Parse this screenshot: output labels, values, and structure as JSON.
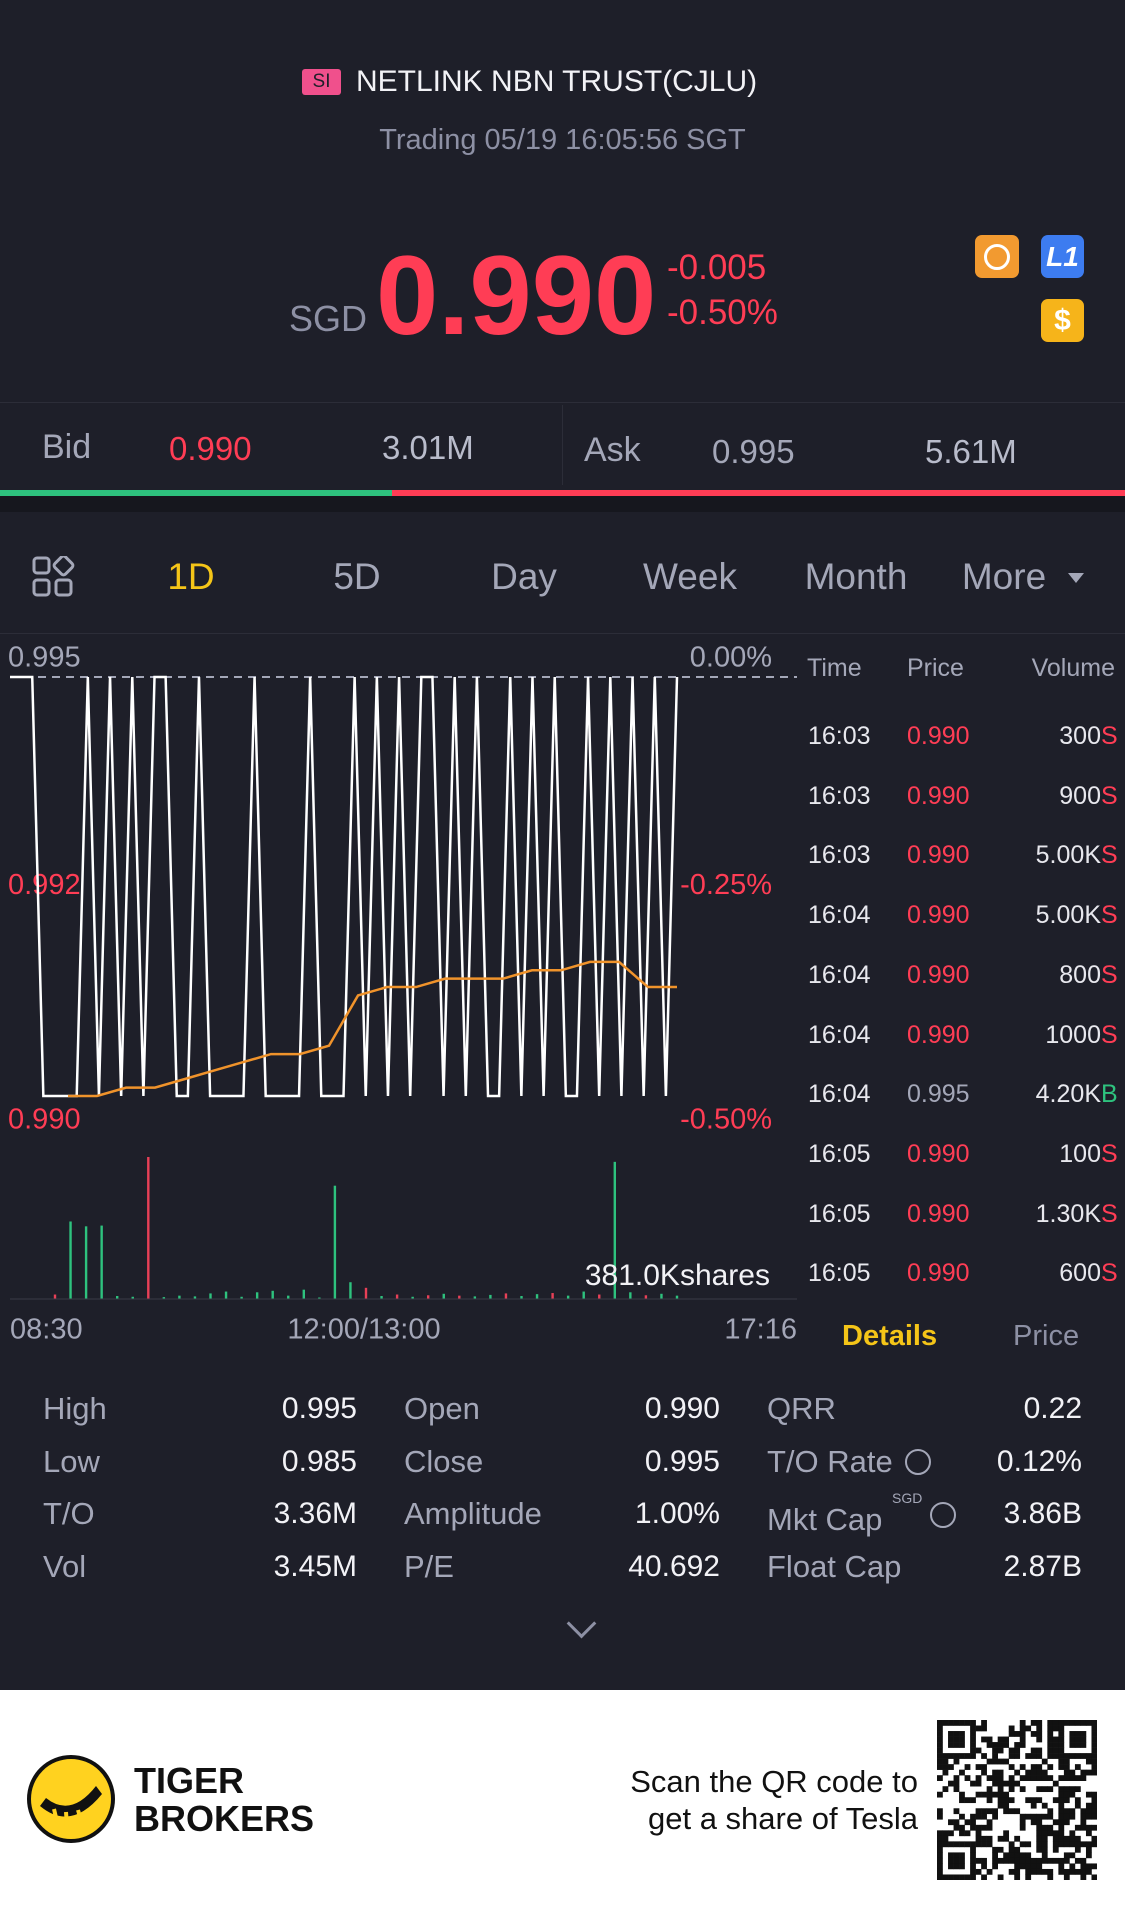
{
  "header": {
    "badge": "SI",
    "title": "NETLINK NBN TRUST(CJLU)",
    "status": "Trading 05/19 16:05:56 SGT"
  },
  "quote": {
    "currency": "SGD",
    "price": "0.990",
    "change": "-0.005",
    "change_pct": "-0.50%",
    "icons": {
      "level": "L1",
      "money": "$"
    }
  },
  "bidask": {
    "bid_label": "Bid",
    "bid_price": "0.990",
    "bid_size": "3.01M",
    "ask_label": "Ask",
    "ask_price": "0.995",
    "ask_size": "5.61M"
  },
  "tabs": [
    "1D",
    "5D",
    "Day",
    "Week",
    "Month",
    "More"
  ],
  "chart_data": {
    "type": "line",
    "ylim": [
      0.99,
      0.995
    ],
    "yticks": [
      {
        "value": 0.99,
        "label": "0.990"
      },
      {
        "value": 0.9925,
        "label": "0.992"
      },
      0.995
    ],
    "y2lim": [
      -0.5,
      0
    ],
    "y2ticks": [
      {
        "value": -0.5,
        "label": "-0.50%"
      },
      {
        "value": -0.25,
        "label": "-0.25%"
      },
      {
        "value": 0,
        "label": "0.00%"
      }
    ],
    "x_labels": [
      "08:30",
      "12:00/13:00",
      "17:16"
    ],
    "series": [
      {
        "color": "#ffffff",
        "values": [
          0.995,
          0.995,
          0.995,
          0.99,
          0.99,
          0.99,
          0.99,
          0.995,
          0.99,
          0.995,
          0.99,
          0.995,
          0.99,
          0.995,
          0.995,
          0.99,
          0.99,
          0.995,
          0.99,
          0.99,
          0.99,
          0.99,
          0.995,
          0.99,
          0.99,
          0.99,
          0.99,
          0.995,
          0.99,
          0.99,
          0.99,
          0.995,
          0.99,
          0.995,
          0.99,
          0.995,
          0.99,
          0.995,
          0.995,
          0.99,
          0.995,
          0.99,
          0.995,
          0.99,
          0.99,
          0.995,
          0.99,
          0.995,
          0.99,
          0.995,
          0.99,
          0.99,
          0.995,
          0.99,
          0.995,
          0.99,
          0.995,
          0.99,
          0.995,
          0.99,
          0.995
        ]
      },
      {
        "color": "#f0932b",
        "values": [
          null,
          null,
          0.99,
          0.99,
          0.9901,
          0.9901,
          0.9902,
          0.9903,
          0.9904,
          0.9905,
          0.9905,
          0.9906,
          0.9912,
          0.9913,
          0.9913,
          0.9914,
          0.9914,
          0.9914,
          0.9915,
          0.9915,
          0.9916,
          0.9916,
          0.9913,
          0.9913
        ]
      }
    ],
    "volume": {
      "max": {
        "value": 381000,
        "label": "381.0Kshares"
      },
      "values": [
        12000,
        208000,
        195000,
        197000,
        8000,
        6000,
        381000,
        5000,
        9000,
        7000,
        15000,
        20000,
        6000,
        18000,
        22000,
        9000,
        25000,
        4000,
        304000,
        45000,
        30000,
        8000,
        12000,
        6000,
        10000,
        14000,
        9000,
        7000,
        11000,
        15000,
        8000,
        13000,
        16000,
        9000,
        20000,
        12000,
        368000,
        18000,
        10000,
        14000,
        9000
      ],
      "colors": [
        "#e84057",
        "#2ec27e",
        "#2ec27e",
        "#2ec27e",
        "#2ec27e",
        "#2ec27e",
        "#e84057",
        "#2ec27e",
        "#2ec27e",
        "#2ec27e",
        "#2ec27e",
        "#2ec27e",
        "#2ec27e",
        "#2ec27e",
        "#2ec27e",
        "#2ec27e",
        "#2ec27e",
        "#2ec27e",
        "#2ec27e",
        "#2ec27e",
        "#e84057",
        "#2ec27e",
        "#e84057",
        "#2ec27e",
        "#e84057",
        "#2ec27e",
        "#e84057",
        "#2ec27e",
        "#2ec27e",
        "#e84057",
        "#2ec27e",
        "#2ec27e",
        "#e84057",
        "#2ec27e",
        "#2ec27e",
        "#e84057",
        "#2ec27e",
        "#2ec27e",
        "#e84057",
        "#2ec27e",
        "#2ec27e"
      ]
    }
  },
  "trades": {
    "columns": [
      "Time",
      "Price",
      "Volume"
    ],
    "rows": [
      [
        "16:03",
        "0.990",
        "300",
        "S"
      ],
      [
        "16:03",
        "0.990",
        "900",
        "S"
      ],
      [
        "16:03",
        "0.990",
        "5.00K",
        "S"
      ],
      [
        "16:04",
        "0.990",
        "5.00K",
        "S"
      ],
      [
        "16:04",
        "0.990",
        "800",
        "S"
      ],
      [
        "16:04",
        "0.990",
        "1000",
        "S"
      ],
      [
        "16:04",
        "0.995",
        "4.20K",
        "B"
      ],
      [
        "16:05",
        "0.990",
        "100",
        "S"
      ],
      [
        "16:05",
        "0.990",
        "1.30K",
        "S"
      ],
      [
        "16:05",
        "0.990",
        "600",
        "S"
      ]
    ],
    "tabs": [
      "Details",
      "Price"
    ]
  },
  "stats": [
    [
      "High",
      "0.995"
    ],
    [
      "Open",
      "0.990"
    ],
    [
      "QRR",
      "0.22"
    ],
    [
      "Low",
      "0.985"
    ],
    [
      "Close",
      "0.995"
    ],
    [
      "T/O Rate",
      "0.12%"
    ],
    [
      "T/O",
      "3.36M"
    ],
    [
      "Amplitude",
      "1.00%"
    ],
    [
      "Mkt Cap",
      "3.86B"
    ],
    [
      "Vol",
      "3.45M"
    ],
    [
      "P/E",
      "40.692"
    ],
    [
      "Float Cap",
      "2.87B"
    ]
  ],
  "stats_note": "SGD",
  "footer": {
    "brand_1": "TIGER",
    "brand_2": "BROKERS",
    "line_1": "Scan the QR code to",
    "line_2": "get a share of Tesla"
  }
}
